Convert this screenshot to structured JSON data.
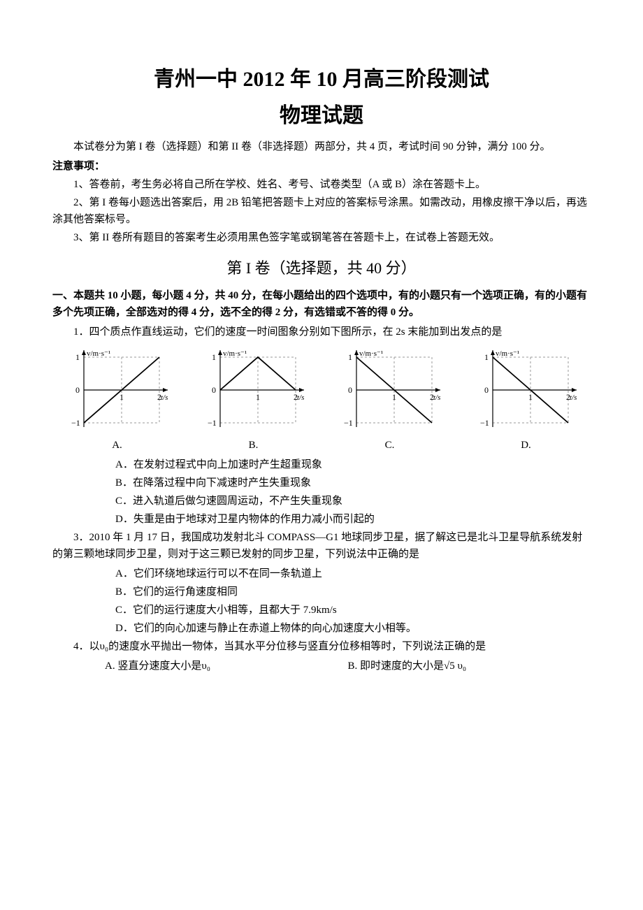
{
  "title_main": "青州一中 2012 年 10 月高三阶段测试",
  "title_sub": "物理试题",
  "intro": "本试卷分为第 I 卷（选择题）和第 II 卷（非选择题）两部分，共 4 页，考试时间 90 分钟，满分 100 分。",
  "notice_header": "注意事项：",
  "notice_items": [
    "1、答卷前，考生务必将自己所在学校、姓名、考号、试卷类型（A 或 B）涂在答题卡上。",
    "2、第 I 卷每小题选出答案后，用 2B 铅笔把答题卡上对应的答案标号涂黑。如需改动，用橡皮擦干净以后，再选涂其他答案标号。",
    "3、第 II 卷所有题目的答案考生必须用黑色签字笔或钢笔答在答题卡上，在试卷上答题无效。"
  ],
  "section_header": "第 I 卷（选择题，共 40 分）",
  "instructions": "一、本题共 10 小题，每小题 4 分，共 40 分，在每小题给出的四个选项中，有的小题只有一个选项正确，有的小题有多个先项正确，全部选对的得 4 分，选不全的得 2 分，有选错或不答的得 0 分。",
  "q1_text": "1．四个质点作直线运动，它们的速度一时间图象分别如下图所示，在 2s 末能加到出发点的是",
  "q1_charts": {
    "y_label": "v/m·s⁻¹",
    "x_label": "t/s",
    "axis_color": "#000000",
    "grid_color": "#999999",
    "line_color": "#000000",
    "bg_color": "#ffffff",
    "width": 165,
    "height": 130,
    "A": {
      "type": "line",
      "points": [
        [
          0,
          -1
        ],
        [
          2,
          1
        ]
      ],
      "label": "A."
    },
    "B": {
      "type": "line",
      "points": [
        [
          0,
          0
        ],
        [
          1,
          1
        ],
        [
          2,
          0
        ]
      ],
      "label": "B."
    },
    "C": {
      "type": "line",
      "points": [
        [
          0,
          1
        ],
        [
          2,
          -1
        ]
      ],
      "label": "C."
    },
    "D": {
      "type": "line",
      "points": [
        [
          0,
          1
        ],
        [
          1,
          0
        ],
        [
          2,
          -1
        ]
      ],
      "label": "D."
    }
  },
  "q2_opts": [
    "A．在发射过程式中向上加速时产生超重现象",
    "B．在降落过程中向下减速时产生失重现象",
    "C．进入轨道后做匀速圆周运动，不产生失重现象",
    "D．失重是由于地球对卫星内物体的作用力减小而引起的"
  ],
  "q3_text": "3．2010 年 1 月 17 日，我国成功发射北斗 COMPASS—G1 地球同步卫星，据了解这已是北斗卫星导航系统发射的第三颗地球同步卫星，则对于这三颗已发射的同步卫星，下列说法中正确的是",
  "q3_opts": [
    "A．它们环绕地球运行可以不在同一条轨道上",
    "B．它们的运行角速度相同",
    "C．它们的运行速度大小相等，且都大于 7.9km/s",
    "D．它们的向心加速与静止在赤道上物体的向心加速度大小相等。"
  ],
  "q4_text": "4．以υ₀的速度水平抛出一物体，当其水平分位移与竖直分位移相等时，下列说法正确的是",
  "q4_opts_row": {
    "A": "A. 竖直分速度大小是υ₀",
    "B": "B. 即时速度的大小是√5 υ₀"
  }
}
